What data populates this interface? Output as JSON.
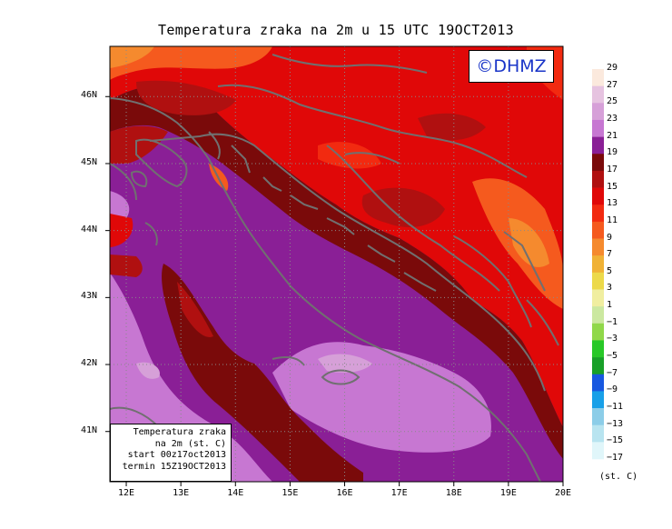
{
  "title": "Temperatura zraka na 2m u 15 UTC 19OCT2013",
  "brand": "©DHMZ",
  "infobox": {
    "line1": "Temperatura zraka",
    "line2": "na 2m (st. C)",
    "line3": "start 00z17oct2013",
    "line4": "termin 15Z19OCT2013"
  },
  "map": {
    "lon_range": [
      11.7,
      20.0
    ],
    "lat_range": [
      40.25,
      46.75
    ],
    "x_ticks": [
      {
        "lon": 12,
        "label": "12E"
      },
      {
        "lon": 13,
        "label": "13E"
      },
      {
        "lon": 14,
        "label": "14E"
      },
      {
        "lon": 15,
        "label": "15E"
      },
      {
        "lon": 16,
        "label": "16E"
      },
      {
        "lon": 17,
        "label": "17E"
      },
      {
        "lon": 18,
        "label": "18E"
      },
      {
        "lon": 19,
        "label": "19E"
      },
      {
        "lon": 20,
        "label": "20E"
      }
    ],
    "y_ticks": [
      {
        "lat": 41,
        "label": "41N"
      },
      {
        "lat": 42,
        "label": "42N"
      },
      {
        "lat": 43,
        "label": "43N"
      },
      {
        "lat": 44,
        "label": "44N"
      },
      {
        "lat": 45,
        "label": "45N"
      },
      {
        "lat": 46,
        "label": "46N"
      }
    ],
    "grid": "dotted"
  },
  "colorbar": {
    "labels": [
      "29",
      "27",
      "25",
      "23",
      "21",
      "19",
      "17",
      "15",
      "13",
      "11",
      "9",
      "7",
      "5",
      "3",
      "1",
      "−1",
      "−3",
      "−5",
      "−7",
      "−9",
      "−11",
      "−13",
      "−15",
      "−17"
    ],
    "colors": [
      "#fbe9dd",
      "#e6c3e0",
      "#d6a0d8",
      "#c777d2",
      "#8a1f96",
      "#7a0a0a",
      "#b01010",
      "#e00808",
      "#f22a10",
      "#f55a1e",
      "#f58a2e",
      "#f0b236",
      "#ecd94a",
      "#f0eea0",
      "#cbe8a0",
      "#90d84a",
      "#28c828",
      "#18a028",
      "#1858e0",
      "#18a0e8",
      "#8ccde8",
      "#b8e4f0",
      "#e0f6fa"
    ],
    "units": "(st. C)"
  }
}
